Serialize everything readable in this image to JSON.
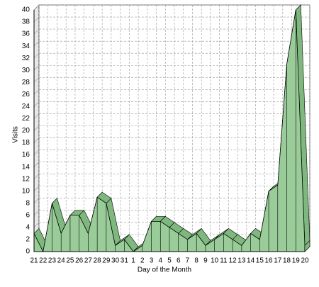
{
  "chart_data": {
    "type": "area",
    "x_label": "Day of the Month",
    "y_label": "Visits",
    "categories": [
      "21",
      "22",
      "23",
      "24",
      "25",
      "26",
      "27",
      "28",
      "29",
      "30",
      "31",
      "1",
      "2",
      "3",
      "4",
      "5",
      "6",
      "7",
      "8",
      "9",
      "10",
      "11",
      "12",
      "13",
      "14",
      "15",
      "16",
      "17",
      "18",
      "19",
      "20"
    ],
    "values": [
      3,
      0,
      8,
      3,
      6,
      6,
      3,
      9,
      8,
      1,
      2,
      0,
      1,
      5,
      5,
      4,
      3,
      2,
      3,
      1,
      2,
      3,
      2,
      1,
      3,
      2,
      10,
      11,
      31,
      40,
      1
    ],
    "color": "#99cc99",
    "ylim": [
      0,
      40
    ],
    "yticks": [
      0,
      2,
      4,
      6,
      8,
      10,
      12,
      14,
      16,
      18,
      20,
      22,
      24,
      26,
      28,
      30,
      32,
      34,
      36,
      38,
      40
    ],
    "grid": true
  }
}
